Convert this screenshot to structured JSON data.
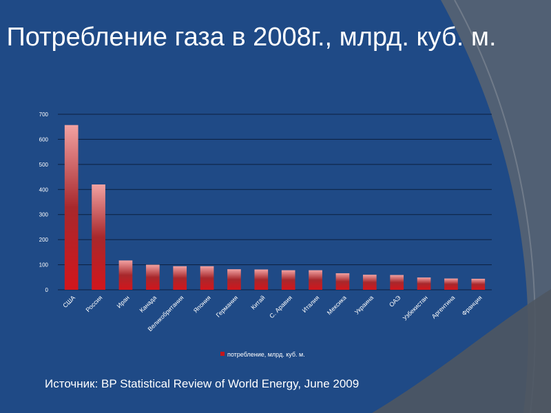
{
  "slide": {
    "title": "Потребление газа в 2008г., млрд. куб. м.",
    "source": "Источник: BP Statistical Review of World Energy, June 2009"
  },
  "colors": {
    "background": "#1f4a86",
    "bar_top": "#f2a2a2",
    "bar_bottom": "#c3161c",
    "gridline": "#0c1f3d",
    "text": "#ffffff"
  },
  "chart_data": {
    "type": "bar",
    "title": "",
    "xlabel": "",
    "ylabel": "",
    "ylim": [
      0,
      700
    ],
    "yticks": [
      0,
      100,
      200,
      300,
      400,
      500,
      600,
      700
    ],
    "grid": true,
    "legend_position": "bottom",
    "categories": [
      "США",
      "Россия",
      "Иран",
      "Канада",
      "Великобритания",
      "Япония",
      "Германия",
      "Китай",
      "С. Аравия",
      "Италия",
      "Мексика",
      "Украина",
      "ОАЭ",
      "Узбекистан",
      "Аргентина",
      "Франция"
    ],
    "series": [
      {
        "name": "потребление, млрд. куб. м.",
        "values": [
          657,
          420,
          117,
          100,
          94,
          94,
          82,
          81,
          78,
          78,
          66,
          60,
          59,
          49,
          45,
          44
        ]
      }
    ]
  }
}
